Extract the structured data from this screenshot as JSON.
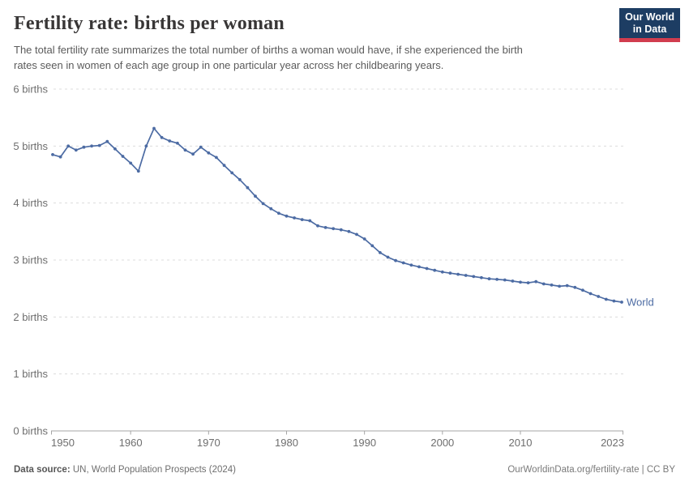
{
  "header": {
    "title": "Fertility rate: births per woman",
    "subtitle_lines": [
      "The total fertility rate summarizes the total number of births a woman would have, if she experienced the birth",
      "rates seen in women of each age group in one particular year across her childbearing years."
    ],
    "logo": {
      "line1": "Our World",
      "line2": "in Data"
    }
  },
  "footer": {
    "source_prefix": "Data source:",
    "source_text": " UN, World Population Prospects (2024)",
    "credit": "OurWorldinData.org/fertility-rate | CC BY"
  },
  "colors": {
    "series": "#4C6BA3",
    "logo_bg": "#1D3D63",
    "logo_accent": "#D13D4E",
    "grid": "#DCDCDC",
    "axis": "#A5A5A5",
    "tick_label": "#6E6E6E"
  },
  "chart_data": {
    "type": "line",
    "title": "Fertility rate: births per woman",
    "xlabel": "",
    "ylabel": "",
    "xlim": [
      1950,
      2023
    ],
    "ylim": [
      0,
      6
    ],
    "grid": "horizontal-dashed",
    "legend": "end-of-line-label",
    "x_ticks": [
      1950,
      1960,
      1970,
      1980,
      1990,
      2000,
      2010,
      2023
    ],
    "y_ticks": [
      0,
      1,
      2,
      3,
      4,
      5,
      6
    ],
    "y_tick_suffix": " births",
    "series": [
      {
        "name": "World",
        "x": [
          1950,
          1951,
          1952,
          1953,
          1954,
          1955,
          1956,
          1957,
          1958,
          1959,
          1960,
          1961,
          1962,
          1963,
          1964,
          1965,
          1966,
          1967,
          1968,
          1969,
          1970,
          1971,
          1972,
          1973,
          1974,
          1975,
          1976,
          1977,
          1978,
          1979,
          1980,
          1981,
          1982,
          1983,
          1984,
          1985,
          1986,
          1987,
          1988,
          1989,
          1990,
          1991,
          1992,
          1993,
          1994,
          1995,
          1996,
          1997,
          1998,
          1999,
          2000,
          2001,
          2002,
          2003,
          2004,
          2005,
          2006,
          2007,
          2008,
          2009,
          2010,
          2011,
          2012,
          2013,
          2014,
          2015,
          2016,
          2017,
          2018,
          2019,
          2020,
          2021,
          2022,
          2023
        ],
        "values": [
          4.85,
          4.81,
          5.0,
          4.93,
          4.98,
          5.0,
          5.01,
          5.08,
          4.95,
          4.82,
          4.7,
          4.56,
          5.0,
          5.31,
          5.15,
          5.09,
          5.05,
          4.93,
          4.86,
          4.98,
          4.88,
          4.8,
          4.66,
          4.53,
          4.41,
          4.27,
          4.12,
          3.99,
          3.9,
          3.82,
          3.77,
          3.74,
          3.71,
          3.69,
          3.6,
          3.57,
          3.55,
          3.53,
          3.5,
          3.45,
          3.37,
          3.25,
          3.13,
          3.05,
          2.99,
          2.95,
          2.91,
          2.88,
          2.85,
          2.82,
          2.79,
          2.77,
          2.75,
          2.73,
          2.71,
          2.69,
          2.67,
          2.66,
          2.65,
          2.63,
          2.61,
          2.6,
          2.62,
          2.58,
          2.56,
          2.54,
          2.55,
          2.52,
          2.47,
          2.41,
          2.36,
          2.31,
          2.28,
          2.26
        ]
      }
    ]
  }
}
